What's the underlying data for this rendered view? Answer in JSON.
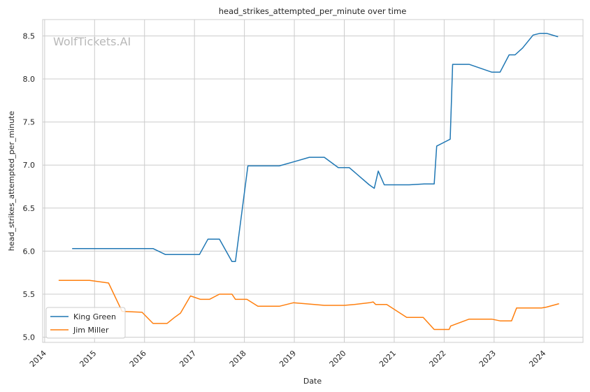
{
  "chart_data": {
    "type": "line",
    "title": "head_strikes_attempted_per_minute over time",
    "xlabel": "Date",
    "ylabel": "head_strikes_attempted_per_minute",
    "watermark": "WolfTickets.AI",
    "xlim": [
      2013.96,
      2024.78
    ],
    "ylim": [
      4.94,
      8.69
    ],
    "x_ticks": [
      2014,
      2015,
      2016,
      2017,
      2018,
      2019,
      2020,
      2021,
      2022,
      2023,
      2024
    ],
    "x_tick_labels": [
      "2014",
      "2015",
      "2016",
      "2017",
      "2018",
      "2019",
      "2020",
      "2021",
      "2022",
      "2023",
      "2024"
    ],
    "y_ticks": [
      5.0,
      5.5,
      6.0,
      6.5,
      7.0,
      7.5,
      8.0,
      8.5
    ],
    "y_tick_labels": [
      "5.0",
      "5.5",
      "6.0",
      "6.5",
      "7.0",
      "7.5",
      "8.0",
      "8.5"
    ],
    "grid": true,
    "legend_position": "lower-left",
    "colors": {
      "King Green": "#1f77b4",
      "Jim Miller": "#ff7f0e",
      "grid": "#cccccc",
      "frame": "#cccccc"
    },
    "series": [
      {
        "name": "King Green",
        "points": [
          [
            2014.55,
            6.03
          ],
          [
            2016.17,
            6.03
          ],
          [
            2016.42,
            5.96
          ],
          [
            2017.1,
            5.96
          ],
          [
            2017.27,
            6.14
          ],
          [
            2017.5,
            6.14
          ],
          [
            2017.75,
            5.88
          ],
          [
            2017.82,
            5.88
          ],
          [
            2018.07,
            6.99
          ],
          [
            2018.7,
            6.99
          ],
          [
            2019.0,
            7.04
          ],
          [
            2019.3,
            7.09
          ],
          [
            2019.6,
            7.09
          ],
          [
            2019.88,
            6.97
          ],
          [
            2020.1,
            6.97
          ],
          [
            2020.5,
            6.77
          ],
          [
            2020.6,
            6.73
          ],
          [
            2020.68,
            6.93
          ],
          [
            2020.8,
            6.77
          ],
          [
            2021.3,
            6.77
          ],
          [
            2021.6,
            6.78
          ],
          [
            2021.8,
            6.78
          ],
          [
            2021.85,
            7.22
          ],
          [
            2022.12,
            7.3
          ],
          [
            2022.17,
            8.17
          ],
          [
            2022.5,
            8.17
          ],
          [
            2022.95,
            8.08
          ],
          [
            2023.12,
            8.08
          ],
          [
            2023.3,
            8.28
          ],
          [
            2023.42,
            8.28
          ],
          [
            2023.57,
            8.36
          ],
          [
            2023.78,
            8.51
          ],
          [
            2023.92,
            8.53
          ],
          [
            2024.05,
            8.53
          ],
          [
            2024.28,
            8.49
          ]
        ]
      },
      {
        "name": "Jim Miller",
        "points": [
          [
            2014.28,
            5.66
          ],
          [
            2014.9,
            5.66
          ],
          [
            2015.28,
            5.63
          ],
          [
            2015.55,
            5.3
          ],
          [
            2015.95,
            5.29
          ],
          [
            2016.17,
            5.16
          ],
          [
            2016.45,
            5.16
          ],
          [
            2016.6,
            5.23
          ],
          [
            2016.72,
            5.28
          ],
          [
            2016.92,
            5.48
          ],
          [
            2017.12,
            5.44
          ],
          [
            2017.3,
            5.44
          ],
          [
            2017.5,
            5.5
          ],
          [
            2017.75,
            5.5
          ],
          [
            2017.82,
            5.44
          ],
          [
            2018.05,
            5.44
          ],
          [
            2018.27,
            5.36
          ],
          [
            2018.7,
            5.36
          ],
          [
            2018.98,
            5.4
          ],
          [
            2019.4,
            5.38
          ],
          [
            2019.6,
            5.37
          ],
          [
            2020.0,
            5.37
          ],
          [
            2020.2,
            5.38
          ],
          [
            2020.5,
            5.4
          ],
          [
            2020.58,
            5.41
          ],
          [
            2020.63,
            5.38
          ],
          [
            2020.85,
            5.38
          ],
          [
            2021.25,
            5.23
          ],
          [
            2021.58,
            5.23
          ],
          [
            2021.8,
            5.09
          ],
          [
            2022.1,
            5.09
          ],
          [
            2022.13,
            5.13
          ],
          [
            2022.5,
            5.21
          ],
          [
            2022.95,
            5.21
          ],
          [
            2023.12,
            5.19
          ],
          [
            2023.35,
            5.19
          ],
          [
            2023.45,
            5.34
          ],
          [
            2023.95,
            5.34
          ],
          [
            2024.05,
            5.35
          ],
          [
            2024.3,
            5.39
          ]
        ]
      }
    ]
  }
}
